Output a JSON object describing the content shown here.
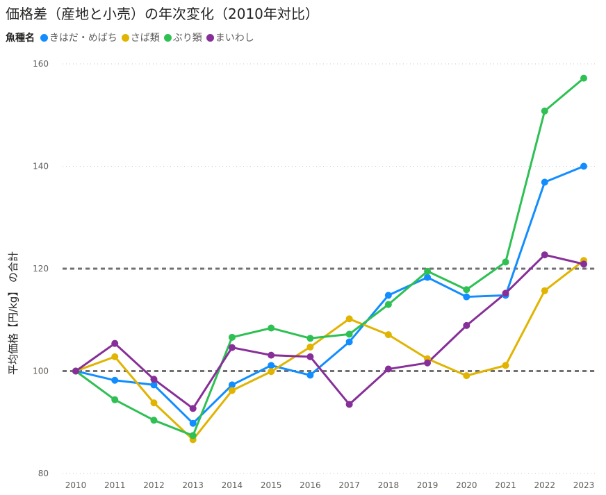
{
  "chart_data": {
    "type": "line",
    "title": "価格差（産地と小売）の年次変化（2010年対比）",
    "legend_title": "魚種名",
    "legend_position": "top-left",
    "xlabel": "",
    "ylabel": "平均価格【円/kg】 の合計",
    "ylim": [
      80,
      160
    ],
    "yticks": [
      80,
      100,
      120,
      140,
      160
    ],
    "grid": true,
    "reference_lines": [
      100,
      120
    ],
    "categories": [
      "2010",
      "2011",
      "2012",
      "2013",
      "2014",
      "2015",
      "2016",
      "2017",
      "2018",
      "2019",
      "2020",
      "2021",
      "2022",
      "2023"
    ],
    "series": [
      {
        "name": "きはだ・めばち",
        "color": "#118DFF",
        "values": [
          100,
          98.2,
          97.3,
          89.8,
          97.3,
          101.1,
          99.2,
          105.7,
          114.8,
          118.3,
          114.5,
          114.8,
          136.9,
          140.0
        ]
      },
      {
        "name": "さば類",
        "color": "#E0B400",
        "values": [
          100,
          102.8,
          93.8,
          86.6,
          96.2,
          99.9,
          104.7,
          110.2,
          107.1,
          102.4,
          99.1,
          101.1,
          115.7,
          121.6
        ]
      },
      {
        "name": "ぶり類",
        "color": "#2EC053",
        "values": [
          100,
          94.4,
          90.4,
          87.4,
          106.6,
          108.4,
          106.4,
          107.2,
          113.0,
          119.5,
          115.9,
          121.3,
          150.8,
          157.2
        ]
      },
      {
        "name": "まいわし",
        "color": "#872F99",
        "values": [
          100,
          105.4,
          98.4,
          92.7,
          104.6,
          103.1,
          102.8,
          93.5,
          100.4,
          101.6,
          108.9,
          115.2,
          122.7,
          120.9
        ]
      }
    ]
  }
}
